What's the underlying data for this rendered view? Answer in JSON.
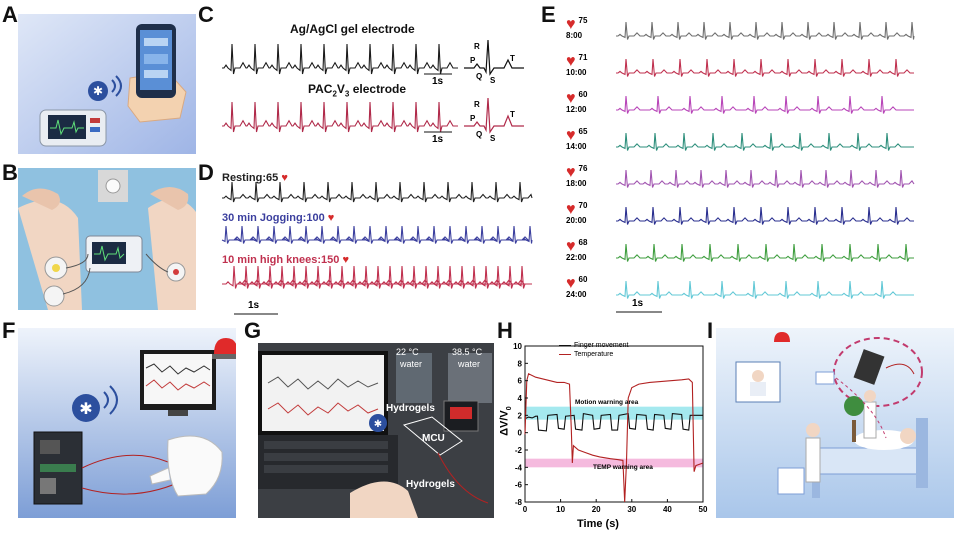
{
  "panels": {
    "a": "A",
    "b": "B",
    "c": "C",
    "d": "D",
    "e": "E",
    "f": "F",
    "g": "G",
    "h": "H",
    "i": "I"
  },
  "panel_c": {
    "title_gel": "Ag/AgCl gel electrode",
    "title_pac_prefix": "PAC",
    "title_pac_sub1": "2",
    "title_pac_mid": "V",
    "title_pac_sub2": "3",
    "title_pac_suffix": " electrode",
    "scale": "1s",
    "wave_letters": {
      "p": "P",
      "q": "Q",
      "r": "R",
      "s": "S",
      "t": "T"
    }
  },
  "panel_d": {
    "resting": "Resting:65",
    "jogging": "30 min Jogging:100",
    "knees": "10 min high knees:150",
    "scale": "1s",
    "colors": {
      "resting": "#222222",
      "jogging": "#3b3f9e",
      "knees": "#c0314f"
    }
  },
  "panel_e": {
    "scale": "1s",
    "rows": [
      {
        "bpm": "75",
        "time": "8:00",
        "color": "#6e6e6e"
      },
      {
        "bpm": "71",
        "time": "10:00",
        "color": "#c0314f"
      },
      {
        "bpm": "60",
        "time": "12:00",
        "color": "#b845b8"
      },
      {
        "bpm": "65",
        "time": "14:00",
        "color": "#2e8f7c"
      },
      {
        "bpm": "76",
        "time": "18:00",
        "color": "#a154b0"
      },
      {
        "bpm": "70",
        "time": "20:00",
        "color": "#2a2f8f"
      },
      {
        "bpm": "68",
        "time": "22:00",
        "color": "#3f9e3f"
      },
      {
        "bpm": "60",
        "time": "24:00",
        "color": "#62c8d6"
      }
    ]
  },
  "panel_g": {
    "temp_left": "22 °C",
    "water_left": "water",
    "temp_right": "38.5 °C",
    "water_right": "water",
    "hydrogels_top": "Hydrogels",
    "mcu": "MCU",
    "hydrogels_bottom": "Hydrogels"
  },
  "chart_data": {
    "type": "line",
    "xlabel": "Time (s)",
    "ylabel_main": "ΔV/V",
    "ylabel_sub": "0",
    "xlim": [
      0,
      50
    ],
    "ylim": [
      -8,
      10
    ],
    "xticks": [
      "0",
      "10",
      "20",
      "30",
      "40",
      "50"
    ],
    "yticks": [
      "10",
      "8",
      "6",
      "4",
      "2",
      "0",
      "-2",
      "-4",
      "-6",
      "-8"
    ],
    "legend": [
      "Finger movement",
      "Temperature"
    ],
    "annotation_motion": "Motion warning area",
    "annotation_temp": "TEMP warning area",
    "motion_band": [
      1.5,
      3.0
    ],
    "temp_band": [
      -4.0,
      -3.0
    ],
    "series": [
      {
        "name": "Finger movement",
        "color": "#111111",
        "points": [
          [
            0,
            1.6
          ],
          [
            1,
            1.8
          ],
          [
            2,
            1.7
          ],
          [
            3,
            1.9
          ],
          [
            3.5,
            1.9
          ],
          [
            3.8,
            0.3
          ],
          [
            6,
            0.2
          ],
          [
            6.4,
            2.0
          ],
          [
            9,
            2.1
          ],
          [
            9.4,
            0.5
          ],
          [
            11,
            0.4
          ],
          [
            11.4,
            1.9
          ],
          [
            13.8,
            2.0
          ],
          [
            14.2,
            0.4
          ],
          [
            16,
            0.3
          ],
          [
            16.4,
            2.2
          ],
          [
            19,
            2.0
          ],
          [
            19.4,
            0.4
          ],
          [
            21,
            0.5
          ],
          [
            21.4,
            2.0
          ],
          [
            24,
            2.1
          ],
          [
            24.4,
            0.3
          ],
          [
            26,
            0.3
          ],
          [
            26.4,
            2.0
          ],
          [
            29,
            2.2
          ],
          [
            29.4,
            0.5
          ],
          [
            31,
            0.4
          ],
          [
            31.4,
            2.1
          ],
          [
            34,
            2.0
          ],
          [
            34.4,
            0.4
          ],
          [
            36,
            0.3
          ],
          [
            36.4,
            2.1
          ],
          [
            39,
            2.0
          ],
          [
            39.4,
            0.5
          ],
          [
            41,
            0.4
          ],
          [
            41.4,
            2.2
          ],
          [
            44,
            2.1
          ],
          [
            44.4,
            0.4
          ],
          [
            46,
            0.3
          ],
          [
            46.4,
            2.0
          ],
          [
            50,
            2.0
          ]
        ]
      },
      {
        "name": "Temperature",
        "color": "#b22222",
        "points": [
          [
            0,
            -0.2
          ],
          [
            0.5,
            6.0
          ],
          [
            1,
            6.8
          ],
          [
            3,
            6.4
          ],
          [
            5,
            6.2
          ],
          [
            7,
            6.0
          ],
          [
            9,
            5.8
          ],
          [
            11,
            5.8
          ],
          [
            12.5,
            5.6
          ],
          [
            13,
            0.5
          ],
          [
            13.3,
            -3.5
          ],
          [
            13.6,
            -1.5
          ],
          [
            15,
            -2.0
          ],
          [
            17,
            -2.3
          ],
          [
            19,
            -2.6
          ],
          [
            21,
            -2.8
          ],
          [
            24,
            -3.0
          ],
          [
            26,
            -3.1
          ],
          [
            27.5,
            -3.2
          ],
          [
            28,
            -8.0
          ],
          [
            28.5,
            -3.5
          ],
          [
            29,
            4.0
          ],
          [
            30,
            5.2
          ],
          [
            32,
            5.6
          ],
          [
            35,
            5.8
          ],
          [
            38,
            5.9
          ],
          [
            41,
            6.0
          ],
          [
            44,
            6.1
          ],
          [
            46,
            6.2
          ],
          [
            47,
            5.8
          ],
          [
            47.5,
            -4.5
          ],
          [
            48,
            -3.8
          ],
          [
            50,
            -3.5
          ]
        ]
      }
    ]
  }
}
